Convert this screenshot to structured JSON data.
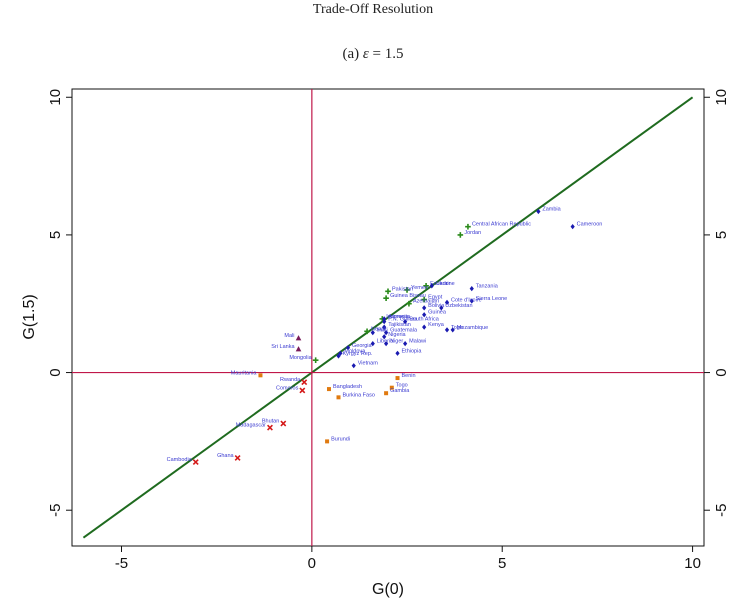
{
  "title": "Trade-Off Resolution",
  "subtitle_prefix": "(a) ",
  "subtitle_eps": "ε",
  "subtitle_suffix": " = 1.5",
  "colors": {
    "north": "#1a1ab0",
    "green": "#2a8a1a",
    "purple": "#7a1a5a",
    "orange": "#e07a10",
    "red": "#d41a1a",
    "diagonal": "#1f6b1f",
    "zero": "#c0184a",
    "text": "#3a3ad0"
  },
  "chart_data": {
    "type": "scatter",
    "xlabel": "G(0)",
    "ylabel": "G(1.5)",
    "xlim": [
      -6.3,
      10.3
    ],
    "ylim": [
      -6.3,
      10.3
    ],
    "xticks": [
      -5,
      0,
      5,
      10
    ],
    "yticks": [
      -5,
      0,
      5,
      10
    ],
    "grid": false,
    "reference_lines": [
      "y = x",
      "x = 0",
      "y = 0"
    ],
    "points": [
      {
        "label": "Zambia",
        "x": 5.95,
        "y": 5.85,
        "group": "north"
      },
      {
        "label": "Cameroon",
        "x": 6.85,
        "y": 5.3,
        "group": "north"
      },
      {
        "label": "Central African Republic",
        "x": 4.1,
        "y": 5.3,
        "group": "green"
      },
      {
        "label": "Jordan",
        "x": 3.9,
        "y": 5.0,
        "group": "green"
      },
      {
        "label": "Tanzania",
        "x": 4.2,
        "y": 3.05,
        "group": "north"
      },
      {
        "label": "Ecuador",
        "x": 3.0,
        "y": 3.15,
        "group": "green"
      },
      {
        "label": "Ukraine",
        "x": 3.15,
        "y": 3.15,
        "group": "north"
      },
      {
        "label": "Yemen",
        "x": 2.5,
        "y": 3.0,
        "group": "green"
      },
      {
        "label": "Pakistan",
        "x": 2.0,
        "y": 2.95,
        "group": "green"
      },
      {
        "label": "Sierra Leone",
        "x": 4.2,
        "y": 2.6,
        "group": "north"
      },
      {
        "label": "Egypt",
        "x": 2.95,
        "y": 2.65,
        "group": "green"
      },
      {
        "label": "Cote d'Ivoire",
        "x": 3.55,
        "y": 2.55,
        "group": "north"
      },
      {
        "label": "Guinea Bissau",
        "x": 1.95,
        "y": 2.7,
        "group": "green"
      },
      {
        "label": "Azerbaijan",
        "x": 2.55,
        "y": 2.5,
        "group": "green"
      },
      {
        "label": "Bolivia",
        "x": 2.95,
        "y": 2.35,
        "group": "north"
      },
      {
        "label": "Uzbekistan",
        "x": 3.4,
        "y": 2.35,
        "group": "north"
      },
      {
        "label": "Guinea",
        "x": 2.95,
        "y": 2.1,
        "group": "north"
      },
      {
        "label": "Indonesia",
        "x": 1.85,
        "y": 1.95,
        "group": "green"
      },
      {
        "label": "Armenia",
        "x": 1.9,
        "y": 1.95,
        "group": "north"
      },
      {
        "label": "South Africa",
        "x": 2.45,
        "y": 1.85,
        "group": "north"
      },
      {
        "label": "P.N. Guinea",
        "x": 1.9,
        "y": 1.85,
        "group": "north"
      },
      {
        "label": "Tajikistan",
        "x": 1.9,
        "y": 1.65,
        "group": "north"
      },
      {
        "label": "Kenya",
        "x": 2.95,
        "y": 1.65,
        "group": "north"
      },
      {
        "label": "Togo",
        "x": 3.55,
        "y": 1.55,
        "group": "north"
      },
      {
        "label": "Mozambique",
        "x": 3.7,
        "y": 1.55,
        "group": "north"
      },
      {
        "label": "Nepal",
        "x": 1.45,
        "y": 1.5,
        "group": "green"
      },
      {
        "label": "Guatemala",
        "x": 1.95,
        "y": 1.45,
        "group": "north"
      },
      {
        "label": "Haiti",
        "x": 1.6,
        "y": 1.45,
        "group": "north"
      },
      {
        "label": "Nigeria",
        "x": 1.9,
        "y": 1.3,
        "group": "north"
      },
      {
        "label": "Mali",
        "x": -0.35,
        "y": 1.25,
        "group": "purple"
      },
      {
        "label": "Liberia",
        "x": 1.6,
        "y": 1.05,
        "group": "north"
      },
      {
        "label": "Niger",
        "x": 1.95,
        "y": 1.05,
        "group": "north"
      },
      {
        "label": "Malawi",
        "x": 2.45,
        "y": 1.05,
        "group": "north"
      },
      {
        "label": "Georgia",
        "x": 0.95,
        "y": 0.9,
        "group": "north"
      },
      {
        "label": "Sri Lanka",
        "x": -0.35,
        "y": 0.85,
        "group": "purple"
      },
      {
        "label": "Moldova",
        "x": 0.75,
        "y": 0.7,
        "group": "north"
      },
      {
        "label": "Ethiopia",
        "x": 2.25,
        "y": 0.7,
        "group": "north"
      },
      {
        "label": "Kyrgyz Rep.",
        "x": 0.7,
        "y": 0.6,
        "group": "north"
      },
      {
        "label": "Mongolia",
        "x": 0.1,
        "y": 0.45,
        "group": "green"
      },
      {
        "label": "Vietnam",
        "x": 1.1,
        "y": 0.25,
        "group": "north"
      },
      {
        "label": "Mauritania",
        "x": -1.35,
        "y": -0.1,
        "group": "orange"
      },
      {
        "label": "Benin",
        "x": 2.25,
        "y": -0.2,
        "group": "orange"
      },
      {
        "label": "Rwanda",
        "x": -0.2,
        "y": -0.35,
        "group": "red"
      },
      {
        "label": "Bangladesh",
        "x": 0.45,
        "y": -0.6,
        "group": "orange"
      },
      {
        "label": "Togo",
        "x": 2.1,
        "y": -0.55,
        "group": "orange"
      },
      {
        "label": "Comoros",
        "x": -0.25,
        "y": -0.65,
        "group": "red"
      },
      {
        "label": "Gambia",
        "x": 1.95,
        "y": -0.75,
        "group": "orange"
      },
      {
        "label": "Burkina Faso",
        "x": 0.7,
        "y": -0.9,
        "group": "orange"
      },
      {
        "label": "Bhutan",
        "x": -0.75,
        "y": -1.85,
        "group": "red"
      },
      {
        "label": "Madagascar",
        "x": -1.1,
        "y": -2.0,
        "group": "red"
      },
      {
        "label": "Burundi",
        "x": 0.4,
        "y": -2.5,
        "group": "orange"
      },
      {
        "label": "Ghana",
        "x": -1.95,
        "y": -3.1,
        "group": "red"
      },
      {
        "label": "Cambodia",
        "x": -3.05,
        "y": -3.25,
        "group": "red"
      }
    ]
  }
}
